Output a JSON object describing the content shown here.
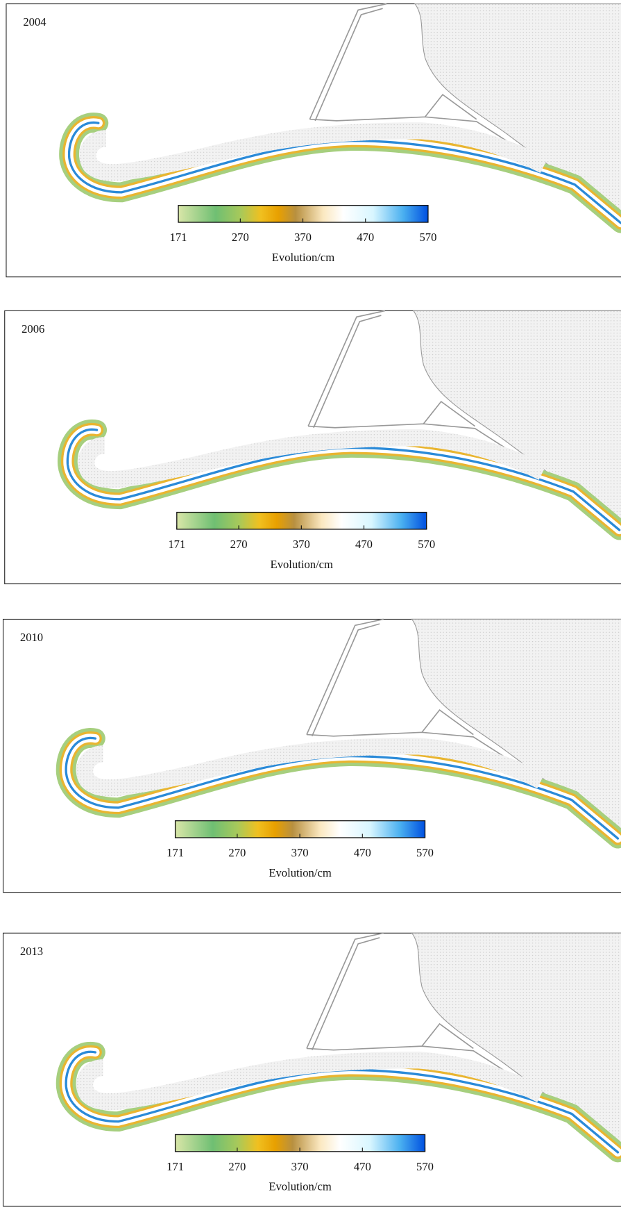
{
  "panels": [
    {
      "year": "2004"
    },
    {
      "year": "2006"
    },
    {
      "year": "2010"
    },
    {
      "year": "2013"
    }
  ],
  "colorbar": {
    "label": "Evolution/cm",
    "lim": [
      171,
      570
    ],
    "ticks": [
      171,
      270,
      370,
      470,
      570
    ]
  }
}
